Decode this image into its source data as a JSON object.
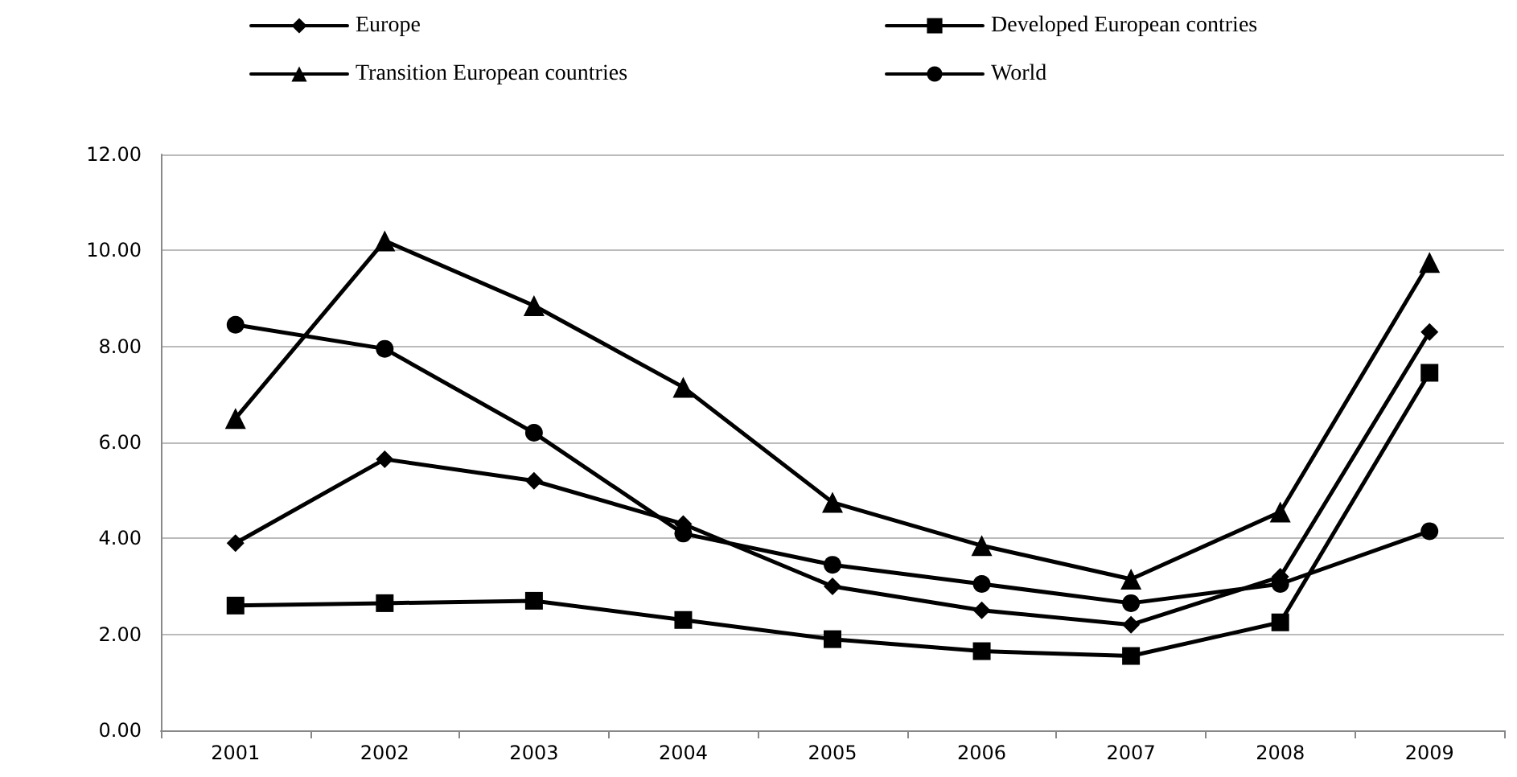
{
  "chart_data": {
    "type": "line",
    "categories": [
      "2001",
      "2002",
      "2003",
      "2004",
      "2005",
      "2006",
      "2007",
      "2008",
      "2009"
    ],
    "series": [
      {
        "name": "Europe",
        "color": "#000000",
        "marker": "diamond",
        "values": [
          3.9,
          5.65,
          5.2,
          4.3,
          3.0,
          2.5,
          2.2,
          3.2,
          8.3
        ]
      },
      {
        "name": "Developed European contries",
        "color": "#000000",
        "marker": "square",
        "values": [
          2.6,
          2.65,
          2.7,
          2.3,
          1.9,
          1.65,
          1.55,
          2.25,
          7.45
        ]
      },
      {
        "name": "Transition European countries",
        "color": "#000000",
        "marker": "triangle",
        "values": [
          6.5,
          10.2,
          8.85,
          7.15,
          4.75,
          3.85,
          3.15,
          4.55,
          9.75
        ]
      },
      {
        "name": "World",
        "color": "#000000",
        "marker": "circle",
        "values": [
          8.45,
          7.95,
          6.2,
          4.1,
          3.45,
          3.05,
          2.65,
          3.05,
          4.15
        ]
      }
    ],
    "ylim": [
      0,
      12
    ],
    "yticks": [
      {
        "value": 0,
        "label": "0.00"
      },
      {
        "value": 2,
        "label": "2.00"
      },
      {
        "value": 4,
        "label": "4.00"
      },
      {
        "value": 6,
        "label": "6.00"
      },
      {
        "value": 8,
        "label": "8.00"
      },
      {
        "value": 10,
        "label": "10.00"
      },
      {
        "value": 12,
        "label": "12.00"
      }
    ],
    "grid": "y",
    "legend": "top",
    "line_style": "solid"
  }
}
